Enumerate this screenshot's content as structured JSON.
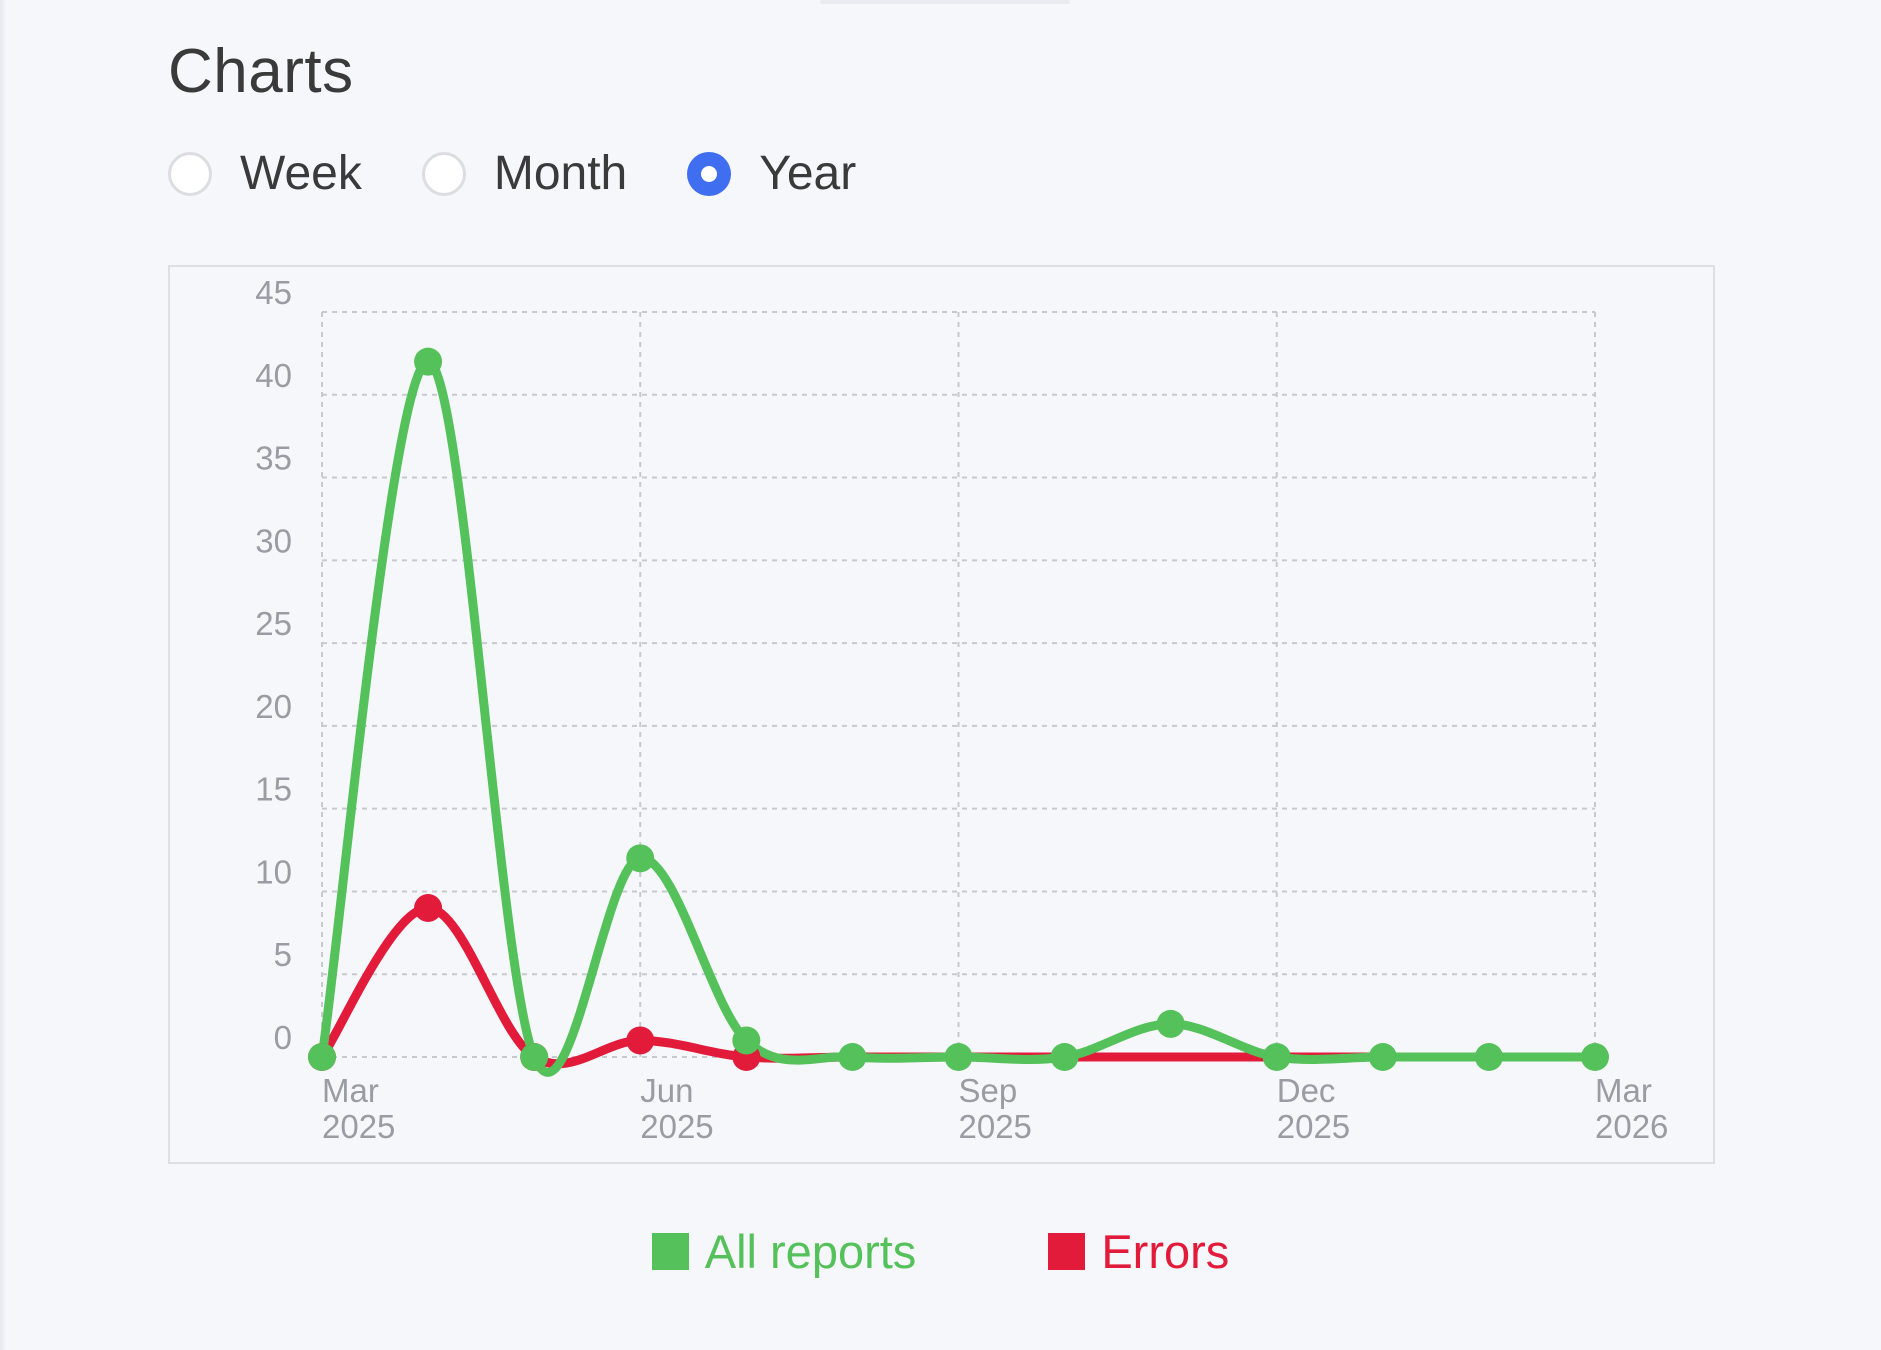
{
  "page": {
    "title": "Charts"
  },
  "range_selector": {
    "options": [
      {
        "label": "Week",
        "selected": false
      },
      {
        "label": "Month",
        "selected": false
      },
      {
        "label": "Year",
        "selected": true
      }
    ]
  },
  "colors": {
    "all_reports": "#55c15a",
    "errors": "#e31b3a",
    "radio_selected": "#3f6ff0",
    "grid": "#c8c9cf",
    "tick_text": "#9a9ca3"
  },
  "chart_data": {
    "type": "line",
    "smooth": true,
    "x": [
      "2025-03",
      "2025-04",
      "2025-05",
      "2025-06",
      "2025-07",
      "2025-08",
      "2025-09",
      "2025-10",
      "2025-11",
      "2025-12",
      "2026-01",
      "2026-02",
      "2026-03"
    ],
    "x_tick_labels": [
      {
        "x": "2025-03",
        "lines": [
          "Mar",
          "2025"
        ]
      },
      {
        "x": "2025-06",
        "lines": [
          "Jun",
          "2025"
        ]
      },
      {
        "x": "2025-09",
        "lines": [
          "Sep",
          "2025"
        ]
      },
      {
        "x": "2025-12",
        "lines": [
          "Dec",
          "2025"
        ]
      },
      {
        "x": "2026-03",
        "lines": [
          "Mar",
          "2026"
        ]
      }
    ],
    "y_ticks": [
      0,
      5,
      10,
      15,
      20,
      25,
      30,
      35,
      40,
      45
    ],
    "ylim": [
      0,
      45
    ],
    "grid": true,
    "legend_position": "bottom",
    "series": [
      {
        "name": "All reports",
        "color": "#55c15a",
        "values": [
          0,
          42,
          0,
          12,
          1,
          0,
          0,
          0,
          2,
          0,
          0,
          0,
          0
        ]
      },
      {
        "name": "Errors",
        "color": "#e31b3a",
        "values": [
          0,
          9,
          0,
          1,
          0,
          0,
          0,
          0,
          0,
          0,
          0,
          0,
          0
        ]
      }
    ],
    "title": "",
    "xlabel": "",
    "ylabel": ""
  }
}
